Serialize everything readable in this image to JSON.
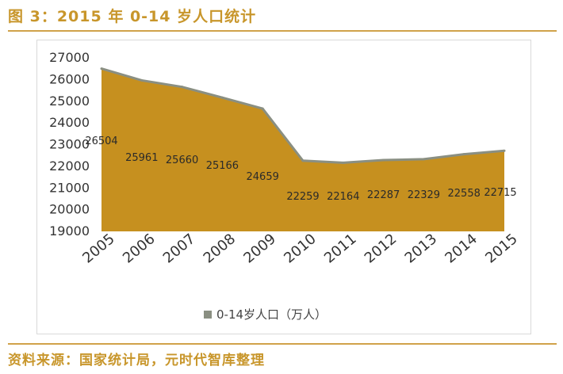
{
  "figure": {
    "title": "图 3：2015 年 0-14 岁人口统计",
    "source": "资料来源：国家统计局，元时代智库整理"
  },
  "colors": {
    "area_fill": "#c6901f",
    "area_stroke": "#8a8f82",
    "legend_swatch": "#8a8f82",
    "title": "#c8962b",
    "rule": "#d0a24a",
    "axis_text": "#333333"
  },
  "chart_data": {
    "type": "area",
    "title": "",
    "xlabel": "",
    "ylabel": "",
    "categories": [
      "2005",
      "2006",
      "2007",
      "2008",
      "2009",
      "2010",
      "2011",
      "2012",
      "2013",
      "2014",
      "2015"
    ],
    "series": [
      {
        "name": "0-14岁人口（万人）",
        "values": [
          26504,
          25961,
          25660,
          25166,
          24659,
          22259,
          22164,
          22287,
          22329,
          22558,
          22715
        ]
      }
    ],
    "ylim": [
      19000,
      27000
    ],
    "yticks": [
      "27000",
      "26000",
      "25000",
      "24000",
      "23000",
      "22000",
      "21000",
      "20000",
      "19000"
    ],
    "data_labels": [
      "26504",
      "25961",
      "25660",
      "25166",
      "24659",
      "22259",
      "22164",
      "22287",
      "22329",
      "22558",
      "22715"
    ],
    "grid": false,
    "legend": "bottom"
  }
}
